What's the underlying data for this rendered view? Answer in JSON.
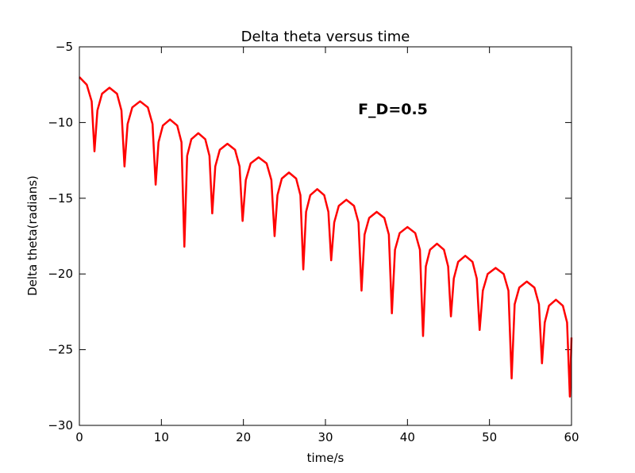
{
  "chart_data": {
    "type": "line",
    "title": "Delta theta versus time",
    "xlabel": "time/s",
    "ylabel": "Delta theta(radians)",
    "annotation": "F_D=0.5",
    "xlim": [
      0,
      60
    ],
    "xticks": [
      0,
      10,
      20,
      30,
      40,
      50,
      60
    ],
    "ylim": [
      -30,
      -5
    ],
    "yticks": [
      {
        "value": -30,
        "label": "−30"
      },
      {
        "value": -25,
        "label": "−25"
      },
      {
        "value": -20,
        "label": "−20"
      },
      {
        "value": -15,
        "label": "−15"
      },
      {
        "value": -10,
        "label": "−10"
      },
      {
        "value": -5,
        "label": "−5"
      }
    ],
    "series": [
      {
        "color": "#ff0000",
        "x": [
          0,
          0.9,
          1.5,
          1.84,
          2.2,
          2.76,
          3.67,
          4.59,
          5.13,
          5.5,
          5.88,
          6.45,
          7.4,
          8.35,
          8.92,
          9.3,
          9.65,
          10.18,
          11.05,
          11.93,
          12.45,
          12.8,
          13.14,
          13.65,
          14.5,
          15.35,
          15.86,
          16.2,
          16.57,
          17.12,
          18.05,
          18.98,
          19.53,
          19.9,
          20.29,
          20.88,
          21.85,
          22.83,
          23.41,
          23.8,
          24.15,
          24.68,
          25.55,
          26.43,
          26.95,
          27.3,
          27.64,
          28.15,
          29.0,
          29.85,
          30.36,
          30.7,
          31.07,
          31.63,
          32.55,
          33.48,
          34.03,
          34.4,
          34.77,
          35.33,
          36.25,
          37.18,
          37.73,
          38.1,
          38.48,
          39.05,
          40.0,
          40.95,
          41.52,
          41.9,
          42.24,
          42.75,
          43.6,
          44.45,
          44.96,
          45.3,
          45.65,
          46.18,
          47.05,
          47.93,
          48.45,
          48.8,
          49.19,
          49.78,
          50.75,
          51.73,
          52.31,
          52.7,
          53.07,
          53.63,
          54.55,
          55.48,
          56.03,
          56.4,
          56.74,
          57.25,
          58.1,
          58.95,
          59.46,
          59.8,
          60
        ],
        "values": [
          -7.0,
          -7.5,
          -8.6,
          -11.9,
          -9.2,
          -8.1,
          -7.7,
          -8.1,
          -9.2,
          -12.9,
          -10.1,
          -9.0,
          -8.6,
          -9.0,
          -10.1,
          -14.1,
          -11.3,
          -10.2,
          -9.8,
          -10.2,
          -11.3,
          -18.2,
          -12.2,
          -11.1,
          -10.7,
          -11.1,
          -12.2,
          -16.0,
          -12.9,
          -11.8,
          -11.4,
          -11.8,
          -12.9,
          -16.5,
          -13.8,
          -12.7,
          -12.3,
          -12.7,
          -13.8,
          -17.5,
          -14.8,
          -13.7,
          -13.3,
          -13.7,
          -14.8,
          -19.7,
          -15.9,
          -14.8,
          -14.4,
          -14.8,
          -15.9,
          -19.1,
          -16.6,
          -15.5,
          -15.1,
          -15.5,
          -16.6,
          -21.1,
          -17.4,
          -16.3,
          -15.9,
          -16.3,
          -17.4,
          -22.6,
          -18.4,
          -17.3,
          -16.9,
          -17.3,
          -18.4,
          -24.1,
          -19.5,
          -18.4,
          -18.0,
          -18.4,
          -19.5,
          -22.8,
          -20.3,
          -19.2,
          -18.8,
          -19.2,
          -20.3,
          -23.7,
          -21.1,
          -20.0,
          -19.6,
          -20.0,
          -21.1,
          -26.9,
          -22.0,
          -20.9,
          -20.5,
          -20.9,
          -22.0,
          -25.9,
          -23.2,
          -22.1,
          -21.7,
          -22.1,
          -23.2,
          -28.1,
          -24.2
        ]
      }
    ]
  }
}
